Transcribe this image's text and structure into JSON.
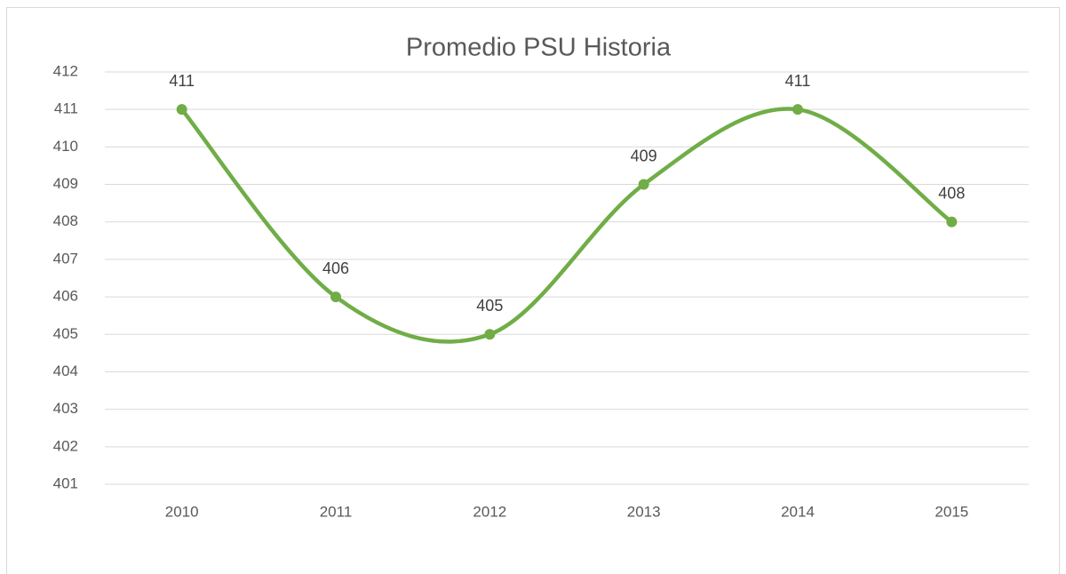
{
  "chart_data": {
    "type": "line",
    "title": "Promedio PSU Historia",
    "categories": [
      "2010",
      "2011",
      "2012",
      "2013",
      "2014",
      "2015"
    ],
    "series": [
      {
        "name": "Promedio",
        "color": "#70ad47",
        "values": [
          411,
          406,
          405,
          409,
          411,
          408
        ]
      }
    ],
    "ylim": [
      401,
      412
    ],
    "yticks": [
      401,
      402,
      403,
      404,
      405,
      406,
      407,
      408,
      409,
      410,
      411,
      412
    ],
    "grid": true,
    "smooth": true,
    "data_labels": true
  }
}
